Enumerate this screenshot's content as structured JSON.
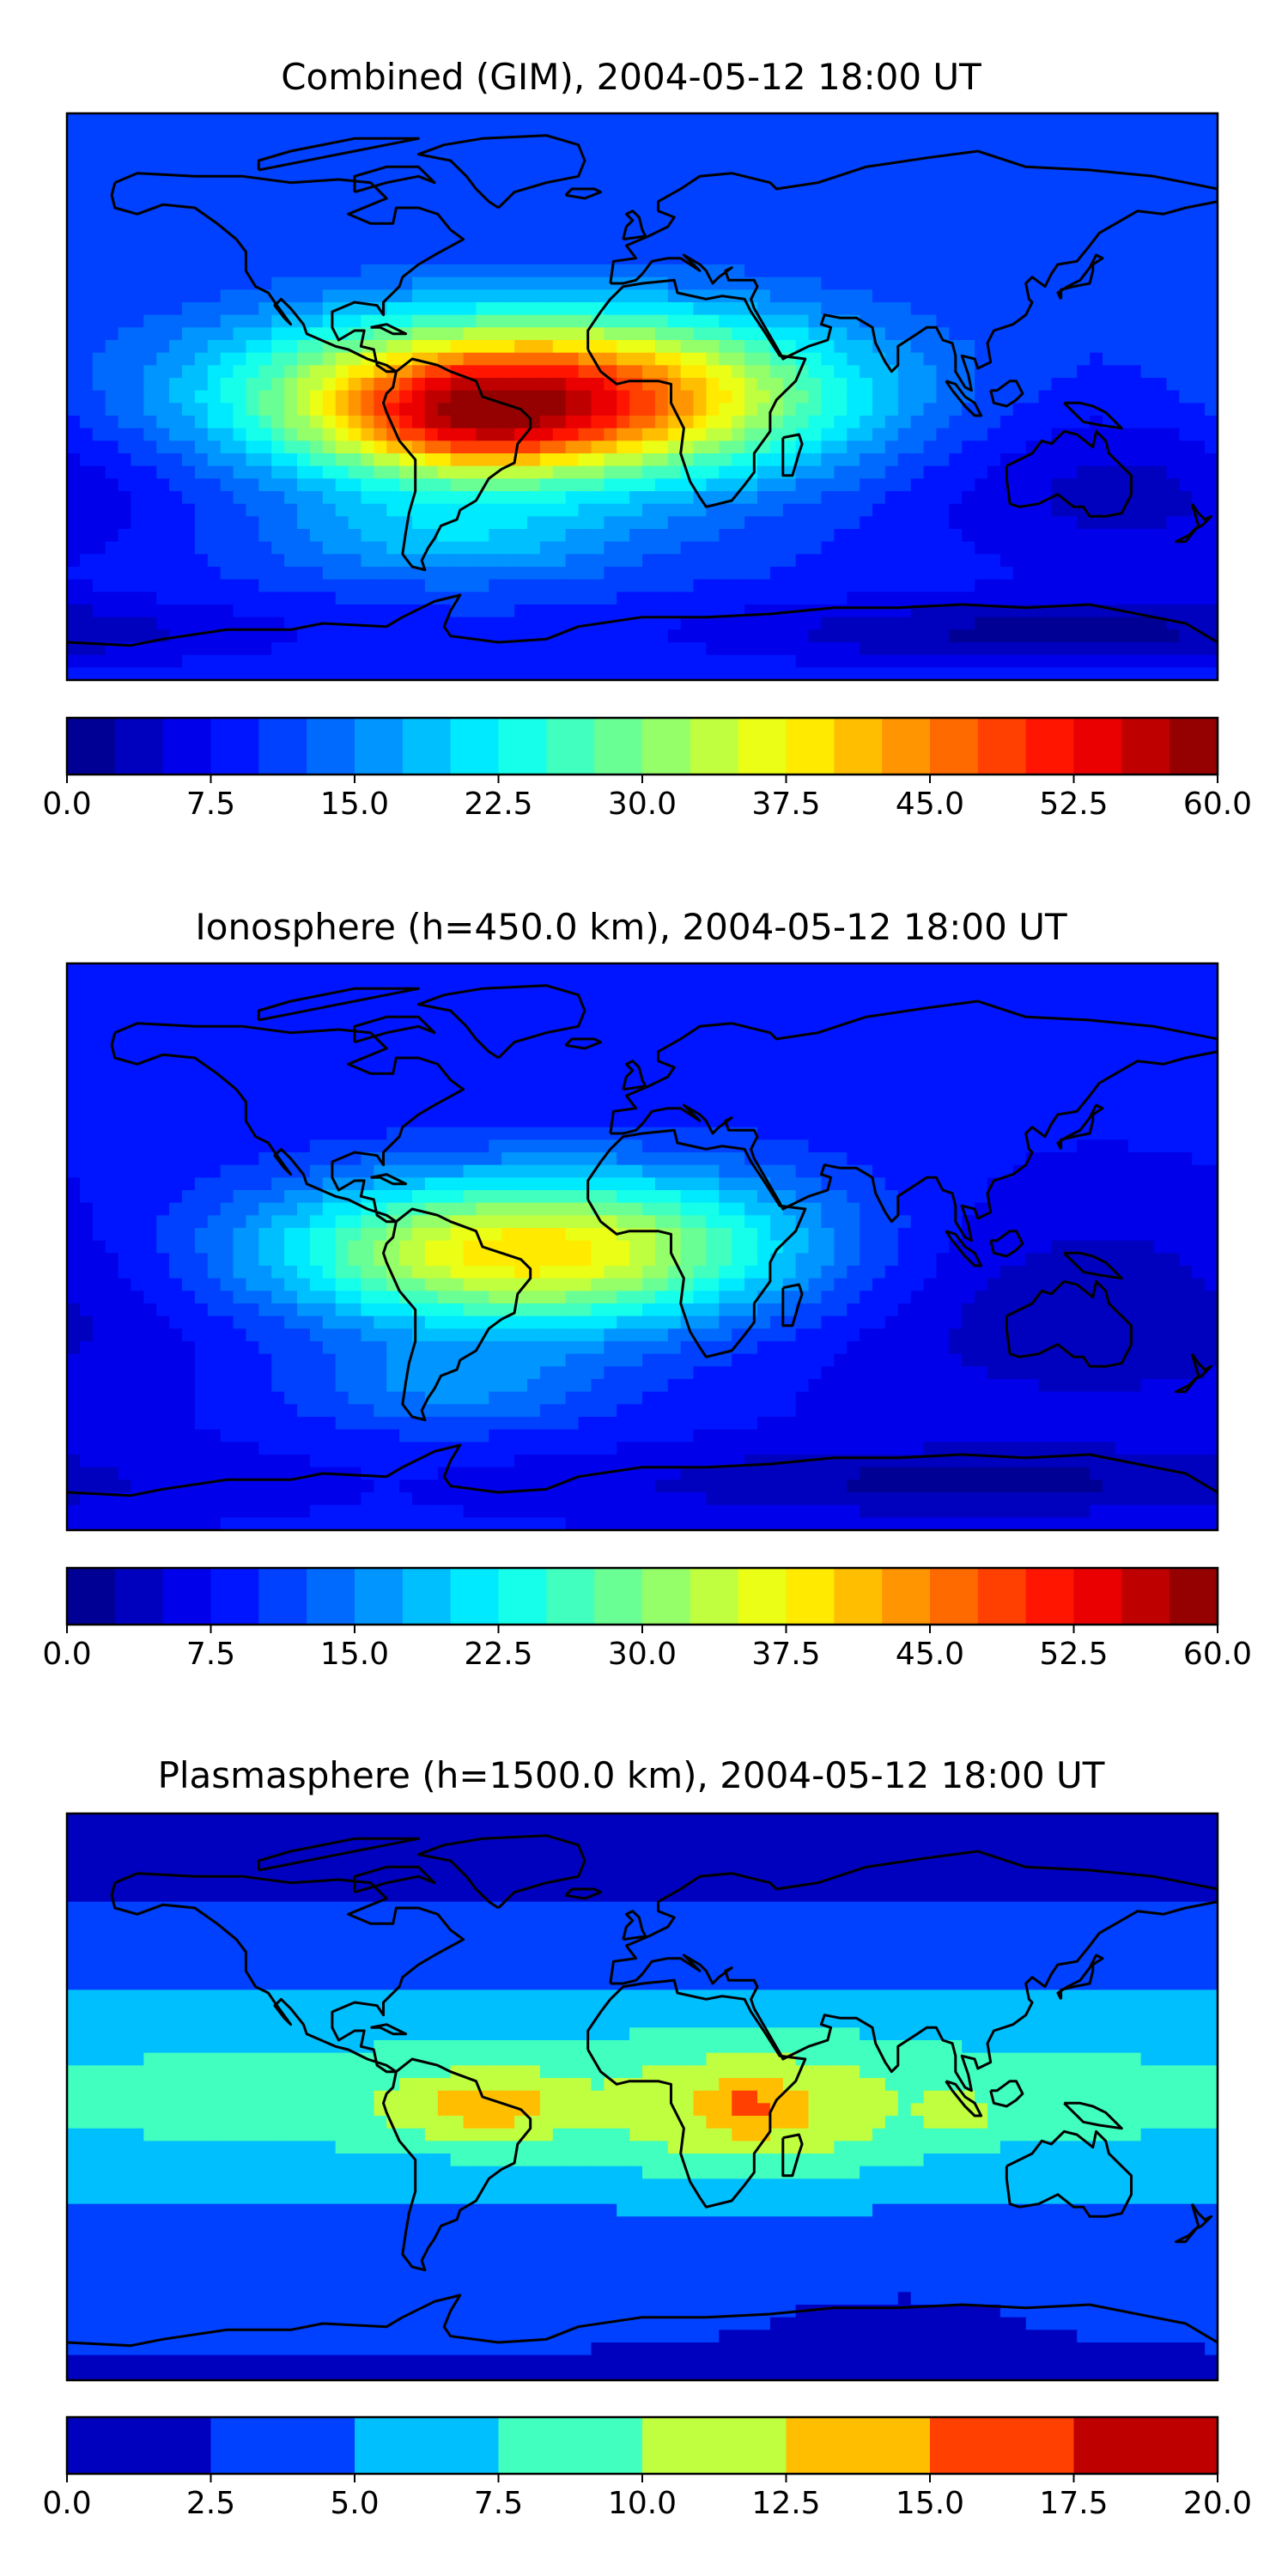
{
  "chart_data": [
    {
      "type": "heatmap",
      "title": "Combined (GIM), 2004-05-12 18:00 UT",
      "colormap": "jet",
      "colorbar": {
        "range": [
          0,
          60
        ],
        "levels": [
          0,
          2.5,
          5,
          7.5,
          10,
          12.5,
          15,
          17.5,
          20,
          22.5,
          25,
          27.5,
          30,
          32.5,
          35,
          37.5,
          40,
          42.5,
          45,
          47.5,
          50,
          52.5,
          55,
          57.5,
          60
        ],
        "tick_labels": [
          "0.0",
          "7.5",
          "15.0",
          "22.5",
          "30.0",
          "37.5",
          "45.0",
          "52.5",
          "60.0"
        ]
      },
      "map": {
        "projection": "PlateCarree",
        "lon_range": [
          -180,
          180
        ],
        "lat_range": [
          -90,
          90
        ],
        "coastlines": true
      },
      "field": {
        "background": 10,
        "features": [
          {
            "lon": -40,
            "lat": 0,
            "amplitude": 40,
            "lon_width": 60,
            "lat_width": 18
          },
          {
            "lon": -55,
            "lat": -10,
            "amplitude": 12,
            "lon_width": 30,
            "lat_width": 12
          },
          {
            "lon": 20,
            "lat": 0,
            "amplitude": 6,
            "lon_width": 50,
            "lat_width": 20
          },
          {
            "lon": -60,
            "lat": -45,
            "amplitude": 8,
            "lon_width": 40,
            "lat_width": 10
          },
          {
            "lon": 130,
            "lat": -75,
            "amplitude": -8,
            "lon_width": 80,
            "lat_width": 8
          },
          {
            "lon": 150,
            "lat": -30,
            "amplitude": -6,
            "lon_width": 50,
            "lat_width": 20
          }
        ]
      }
    },
    {
      "type": "heatmap",
      "title": "Ionosphere  (h=450.0 km), 2004-05-12 18:00 UT",
      "colormap": "jet",
      "colorbar": {
        "range": [
          0,
          60
        ],
        "levels": [
          0,
          2.5,
          5,
          7.5,
          10,
          12.5,
          15,
          17.5,
          20,
          22.5,
          25,
          27.5,
          30,
          32.5,
          35,
          37.5,
          40,
          42.5,
          45,
          47.5,
          50,
          52.5,
          55,
          57.5,
          60
        ],
        "tick_labels": [
          "0.0",
          "7.5",
          "15.0",
          "22.5",
          "30.0",
          "37.5",
          "45.0",
          "52.5",
          "60.0"
        ]
      },
      "map": {
        "projection": "PlateCarree",
        "lon_range": [
          -180,
          180
        ],
        "lat_range": [
          -90,
          90
        ],
        "coastlines": true
      },
      "field": {
        "background": 8,
        "features": [
          {
            "lon": -40,
            "lat": -2,
            "amplitude": 30,
            "lon_width": 55,
            "lat_width": 17
          },
          {
            "lon": -60,
            "lat": -45,
            "amplitude": 7,
            "lon_width": 35,
            "lat_width": 10
          },
          {
            "lon": 20,
            "lat": 5,
            "amplitude": 4,
            "lon_width": 45,
            "lat_width": 20
          },
          {
            "lon": 140,
            "lat": -20,
            "amplitude": -5,
            "lon_width": 60,
            "lat_width": 25
          },
          {
            "lon": 100,
            "lat": -75,
            "amplitude": -6,
            "lon_width": 80,
            "lat_width": 8
          }
        ]
      }
    },
    {
      "type": "heatmap",
      "title": "Plasmasphere (h=1500.0 km), 2004-05-12 18:00 UT",
      "colormap": "jet",
      "colorbar": {
        "range": [
          0,
          20
        ],
        "levels": [
          0,
          2.5,
          5,
          7.5,
          10,
          12.5,
          15,
          17.5,
          20
        ],
        "tick_labels": [
          "0.0",
          "2.5",
          "5.0",
          "7.5",
          "10.0",
          "12.5",
          "15.0",
          "17.5",
          "20.0"
        ]
      },
      "map": {
        "projection": "PlateCarree",
        "lon_range": [
          -180,
          180
        ],
        "lat_range": [
          -90,
          90
        ],
        "coastlines": true
      },
      "field": {
        "background": 2,
        "features": [
          {
            "lon": 0,
            "lat": 0,
            "amplitude": 6.5,
            "lon_width": 400,
            "lat_width": 28
          },
          {
            "lon": 35,
            "lat": -5,
            "amplitude": 5,
            "lon_width": 30,
            "lat_width": 14
          },
          {
            "lon": 33,
            "lat": -2,
            "amplitude": 2.5,
            "lon_width": 6,
            "lat_width": 6
          },
          {
            "lon": -62,
            "lat": -3,
            "amplitude": 3.5,
            "lon_width": 18,
            "lat_width": 8
          },
          {
            "lon": -40,
            "lat": -3,
            "amplitude": 3.5,
            "lon_width": 14,
            "lat_width": 8
          },
          {
            "lon": 100,
            "lat": -5,
            "amplitude": 3,
            "lon_width": 8,
            "lat_width": 5
          },
          {
            "lon": -100,
            "lat": -72,
            "amplitude": 2,
            "lon_width": 70,
            "lat_width": 6
          }
        ]
      }
    }
  ]
}
